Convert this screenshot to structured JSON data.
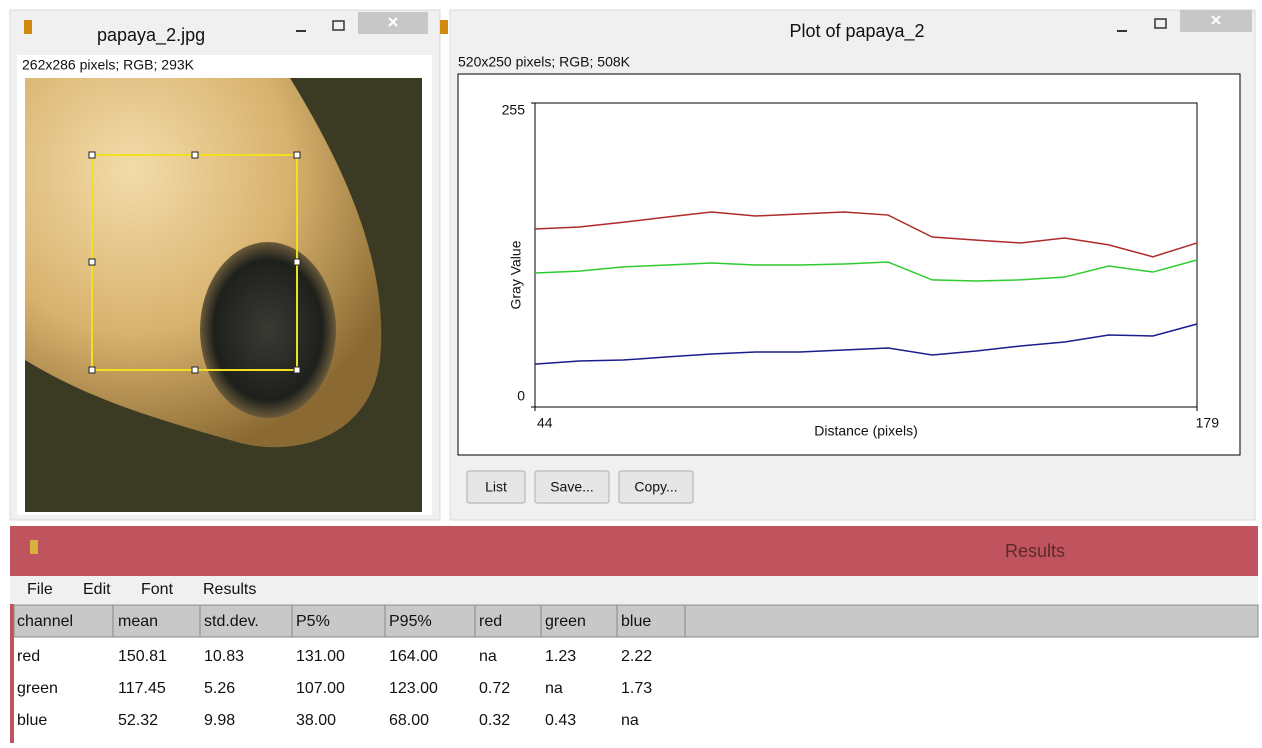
{
  "image_window": {
    "title": "papaya_2.jpg",
    "info": "262x286 pixels; RGB; 293K"
  },
  "plot_window": {
    "title": "Plot of papaya_2",
    "info": "520x250 pixels; RGB; 508K",
    "buttons": [
      "List",
      "Save...",
      "Copy..."
    ]
  },
  "chart_data": {
    "type": "line",
    "xlabel": "Distance (pixels)",
    "ylabel": "Gray Value",
    "x": [
      44,
      53,
      62,
      71,
      80,
      89,
      98,
      107,
      116,
      125,
      134,
      143,
      152,
      161,
      170,
      179
    ],
    "xlim": [
      44,
      179
    ],
    "ylim": [
      0,
      255
    ],
    "xticks": [
      44,
      179
    ],
    "yticks": [
      0,
      255
    ],
    "series": [
      {
        "name": "red",
        "color": "#b02a2a",
        "values": [
          149.3,
          151,
          155,
          159.4,
          163.6,
          160.2,
          161.9,
          163.6,
          161,
          142.6,
          140,
          137.6,
          141.8,
          136,
          126,
          137.6
        ]
      },
      {
        "name": "green",
        "color": "#2fcc2f",
        "values": [
          112.4,
          114,
          117.5,
          119.1,
          120.8,
          119.1,
          119.1,
          120,
          121.6,
          106.6,
          105.7,
          106.6,
          109,
          118.3,
          113.2,
          123.3
        ]
      },
      {
        "name": "blue",
        "color": "#1c1c8c",
        "values": [
          36,
          38.6,
          39.4,
          42,
          44.5,
          46.1,
          46.1,
          47.8,
          49.5,
          43.6,
          47,
          51.2,
          54.5,
          60.4,
          59.6,
          69.6
        ]
      }
    ]
  },
  "results_window": {
    "title": "Results",
    "menu": [
      "File",
      "Edit",
      "Font",
      "Results"
    ],
    "table": {
      "columns": [
        "channel",
        "mean",
        "std.dev.",
        "P5%",
        "P95%",
        "red",
        "green",
        "blue"
      ],
      "rows": [
        [
          "red",
          "150.81",
          "10.83",
          "131.00",
          "164.00",
          "na",
          "1.23",
          "2.22"
        ],
        [
          "green",
          "117.45",
          "5.26",
          "107.00",
          "123.00",
          "0.72",
          "na",
          "1.73"
        ],
        [
          "blue",
          "52.32",
          "9.98",
          "38.00",
          "68.00",
          "0.32",
          "0.43",
          "na"
        ]
      ]
    }
  }
}
